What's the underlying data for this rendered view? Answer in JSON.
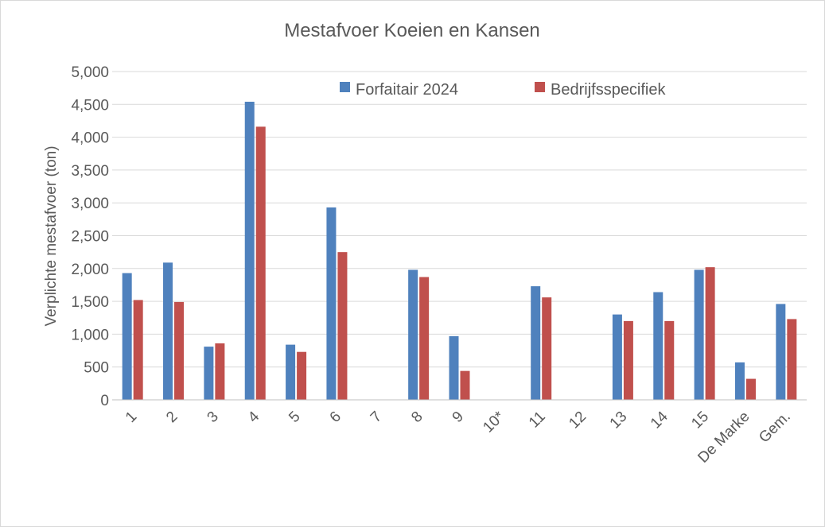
{
  "chart_data": {
    "type": "bar",
    "title": "Mestafvoer Koeien en Kansen",
    "ylabel": "Verplichte mestafvoer (ton)",
    "xlabel": "",
    "ylim": [
      0,
      5000
    ],
    "yticks": [
      "0",
      "500",
      "1,000",
      "1,500",
      "2,000",
      "2,500",
      "3,000",
      "3,500",
      "4,000",
      "4,500",
      "5,000"
    ],
    "ytick_values": [
      0,
      500,
      1000,
      1500,
      2000,
      2500,
      3000,
      3500,
      4000,
      4500,
      5000
    ],
    "grid": true,
    "legend_position": "top",
    "categories": [
      "1",
      "2",
      "3",
      "4",
      "5",
      "6",
      "7",
      "8",
      "9",
      "10*",
      "11",
      "12",
      "13",
      "14",
      "15",
      "De Marke",
      "Gem."
    ],
    "series": [
      {
        "name": "Forfaitair 2024",
        "color": "#4f81bd",
        "values": [
          1930,
          2090,
          810,
          4540,
          840,
          2930,
          null,
          1980,
          970,
          null,
          1730,
          null,
          1300,
          1640,
          1980,
          570,
          1460
        ]
      },
      {
        "name": "Bedrijfsspecifiek",
        "color": "#c0504d",
        "values": [
          1520,
          1490,
          860,
          4160,
          730,
          2250,
          null,
          1870,
          440,
          null,
          1560,
          null,
          1200,
          1200,
          2020,
          320,
          1230
        ]
      }
    ]
  }
}
